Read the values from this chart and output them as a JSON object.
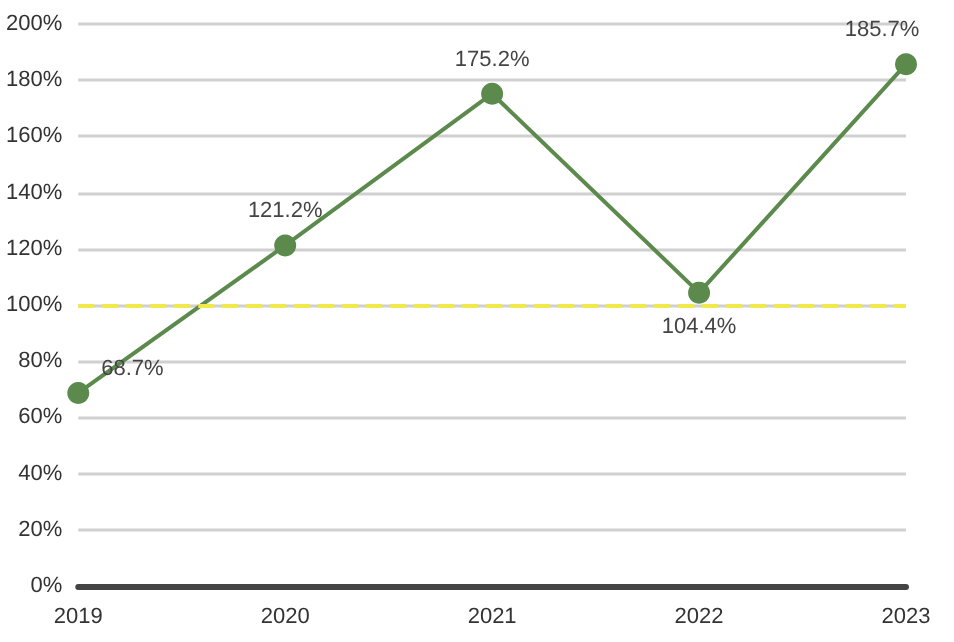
{
  "chart_data": {
    "type": "line",
    "categories": [
      "2019",
      "2020",
      "2021",
      "2022",
      "2023"
    ],
    "series": [
      {
        "color": "#5b8a4c",
        "values": [
          68.7,
          121.2,
          175.2,
          104.4,
          185.7
        ],
        "value_labels": [
          "68.7%",
          "121.2%",
          "175.2%",
          "104.4%",
          "185.7%"
        ]
      }
    ],
    "ylim": [
      0,
      200
    ],
    "yticks": [
      {
        "value": 0,
        "label": "0%"
      },
      {
        "value": 20,
        "label": "20%"
      },
      {
        "value": 40,
        "label": "40%"
      },
      {
        "value": 60,
        "label": "60%"
      },
      {
        "value": 80,
        "label": "80%"
      },
      {
        "value": 100,
        "label": "100%"
      },
      {
        "value": 120,
        "label": "120%"
      },
      {
        "value": 140,
        "label": "140%"
      },
      {
        "value": 160,
        "label": "160%"
      },
      {
        "value": 180,
        "label": "180%"
      },
      {
        "value": 200,
        "label": "200%"
      }
    ],
    "ref_lines": [
      {
        "axis": "y",
        "value": 100,
        "color": "#f2e84a",
        "line_style": "dashed"
      }
    ],
    "grid": "y",
    "marker": "circle",
    "line_style": "solid"
  }
}
